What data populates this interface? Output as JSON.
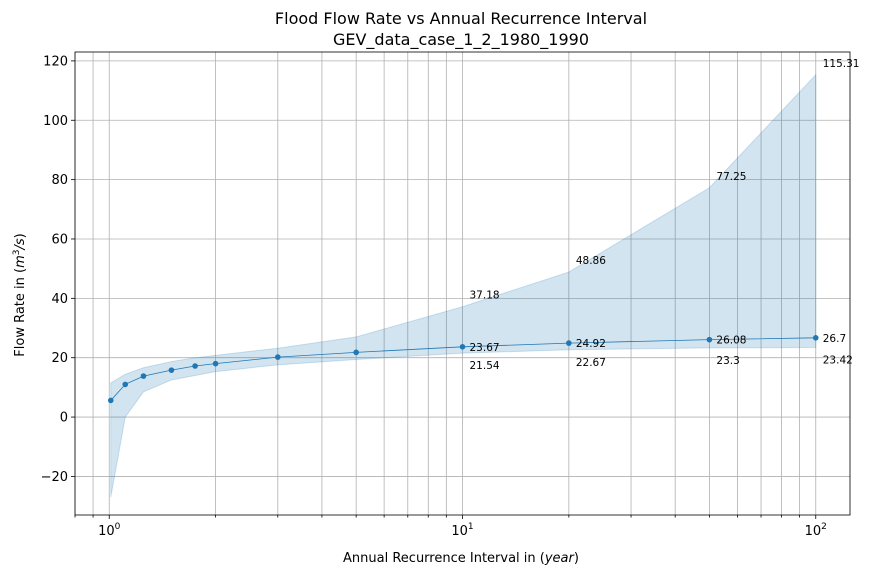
{
  "chart_data": {
    "type": "line",
    "title": "Flood Flow Rate vs Annual Recurrence Interval",
    "subtitle": "GEV_data_case_1_2_1980_1990",
    "xlabel": "Annual Recurrence Interval in (year)",
    "xlabel_prefix": "Annual Recurrence Interval in (",
    "xlabel_italic": "year",
    "xlabel_suffix": ")",
    "ylabel": "Flow Rate in (m3/s)",
    "ylabel_prefix": "Flow Rate in (",
    "ylabel_italic_base": "m",
    "ylabel_superscript": "3",
    "ylabel_italic_tail": "/s",
    "ylabel_suffix": ")",
    "x_scale": "log",
    "xlim": [
      0.8,
      125
    ],
    "ylim": [
      -33,
      123
    ],
    "x_major_ticks": [
      1,
      10,
      100
    ],
    "x_tick_bases": [
      "10",
      "10",
      "10"
    ],
    "x_tick_exponents": [
      "0",
      "1",
      "2"
    ],
    "y_ticks": [
      -20,
      0,
      20,
      40,
      60,
      80,
      100,
      120
    ],
    "y_tick_labels": [
      "−20",
      "0",
      "20",
      "40",
      "60",
      "80",
      "100",
      "120"
    ],
    "grid": true,
    "grid_minor_x": true,
    "colors": {
      "line": "#1f77b4",
      "band": "#1f77b4",
      "grid": "#b0b0b0"
    },
    "series": {
      "x": [
        1.01,
        1.11,
        1.25,
        1.5,
        1.75,
        2,
        3,
        5,
        10,
        20,
        50,
        100
      ],
      "estimate": [
        5.6,
        11.0,
        13.8,
        15.8,
        17.2,
        18.0,
        20.2,
        21.8,
        23.67,
        24.92,
        26.08,
        26.7
      ],
      "upper": [
        11.5,
        14.4,
        16.6,
        18.7,
        20.0,
        20.8,
        23.2,
        27.0,
        37.18,
        48.86,
        77.25,
        115.31
      ],
      "lower": [
        -27.0,
        0.0,
        8.5,
        12.5,
        14.0,
        15.3,
        17.6,
        19.4,
        21.54,
        22.67,
        23.3,
        23.42
      ]
    },
    "annotations": [
      {
        "x": 10,
        "y": 23.67,
        "text": "23.67",
        "kind": "estimate"
      },
      {
        "x": 10,
        "y": 37.18,
        "text": "37.18",
        "kind": "upper"
      },
      {
        "x": 10,
        "y": 21.54,
        "text": "21.54",
        "kind": "lower"
      },
      {
        "x": 20,
        "y": 24.92,
        "text": "24.92",
        "kind": "estimate"
      },
      {
        "x": 20,
        "y": 48.86,
        "text": "48.86",
        "kind": "upper"
      },
      {
        "x": 20,
        "y": 22.67,
        "text": "22.67",
        "kind": "lower"
      },
      {
        "x": 50,
        "y": 26.08,
        "text": "26.08",
        "kind": "estimate"
      },
      {
        "x": 50,
        "y": 77.25,
        "text": "77.25",
        "kind": "upper"
      },
      {
        "x": 50,
        "y": 23.3,
        "text": "23.3",
        "kind": "lower"
      },
      {
        "x": 100,
        "y": 26.7,
        "text": "26.7",
        "kind": "estimate"
      },
      {
        "x": 100,
        "y": 115.31,
        "text": "115.31",
        "kind": "upper"
      },
      {
        "x": 100,
        "y": 23.42,
        "text": "23.42",
        "kind": "lower"
      }
    ]
  }
}
